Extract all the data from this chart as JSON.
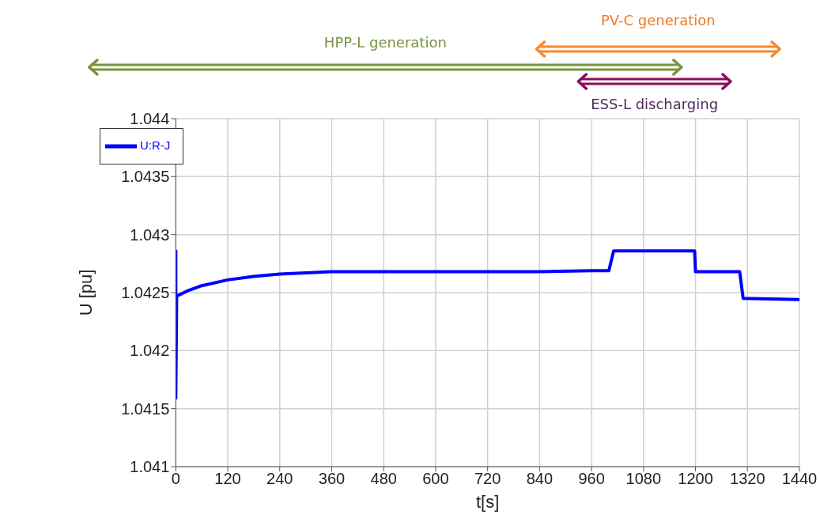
{
  "chart_data": {
    "type": "line",
    "xlabel": "t[s]",
    "ylabel": "U [pu]",
    "annotations": [
      "HPP-L generation",
      "PV-C generation",
      "ESS-L discharging"
    ],
    "x": [
      0,
      0,
      2,
      30,
      60,
      120,
      180,
      240,
      360,
      480,
      600,
      720,
      840,
      960,
      1000,
      1011,
      1100,
      1198,
      1200,
      1302,
      1310,
      1440
    ],
    "series": [
      {
        "name": "U:R-J",
        "color": "#0000ff",
        "values": [
          1.04287,
          1.04159,
          1.04247,
          1.04252,
          1.04256,
          1.04261,
          1.04264,
          1.04266,
          1.04268,
          1.04268,
          1.04268,
          1.04268,
          1.04268,
          1.04269,
          1.04269,
          1.04286,
          1.04286,
          1.04286,
          1.04268,
          1.04268,
          1.04245,
          1.04244
        ]
      }
    ],
    "xlim": [
      0,
      1440
    ],
    "xticks": [
      0,
      120,
      240,
      360,
      480,
      600,
      720,
      840,
      960,
      1080,
      1200,
      1320,
      1440
    ],
    "ylim": [
      1.041,
      1.044
    ],
    "yticks": [
      1.041,
      1.0415,
      1.042,
      1.0425,
      1.043,
      1.0435,
      1.044
    ],
    "grid": true,
    "legend": "top left",
    "marker": "none",
    "line_style": "solid"
  }
}
